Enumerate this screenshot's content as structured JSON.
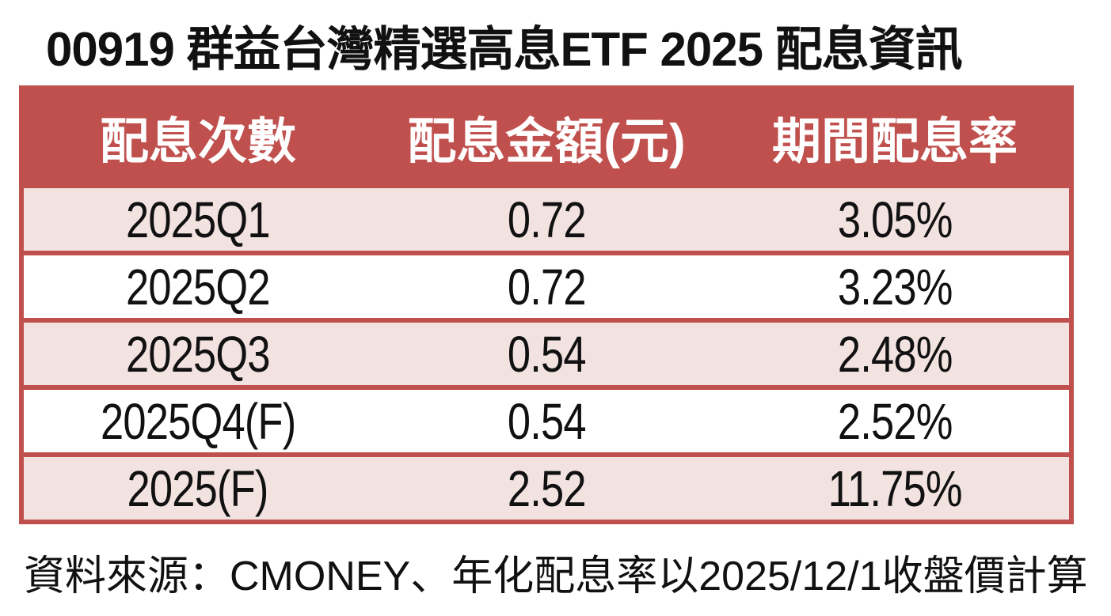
{
  "title": "00919 群益台灣精選高息ETF 2025 配息資訊",
  "table": {
    "headers": [
      "配息次數",
      "配息金額(元)",
      "期間配息率"
    ],
    "rows": [
      {
        "period": "2025Q1",
        "amount": "0.72",
        "rate": "3.05%"
      },
      {
        "period": "2025Q2",
        "amount": "0.72",
        "rate": "3.23%"
      },
      {
        "period": "2025Q3",
        "amount": "0.54",
        "rate": "2.48%"
      },
      {
        "period": "2025Q4(F)",
        "amount": "0.54",
        "rate": "2.52%"
      },
      {
        "period": "2025(F)",
        "amount": "2.52",
        "rate": "11.75%"
      }
    ]
  },
  "footer": "資料來源：CMONEY、年化配息率以2025/12/1收盤價計算",
  "colors": {
    "header_bg": "#C0504D",
    "header_text": "#FFFFFF",
    "row_alt_bg": "#F2E2E0",
    "row_bg": "#FFFFFF",
    "border": "#C0504D",
    "text": "#111111"
  },
  "chart_data": {
    "type": "table",
    "title": "00919 群益台灣精選高息ETF 2025 配息資訊",
    "columns": [
      "配息次數",
      "配息金額(元)",
      "期間配息率"
    ],
    "rows": [
      [
        "2025Q1",
        0.72,
        "3.05%"
      ],
      [
        "2025Q2",
        0.72,
        "3.23%"
      ],
      [
        "2025Q3",
        0.54,
        "2.48%"
      ],
      [
        "2025Q4(F)",
        0.54,
        "2.52%"
      ],
      [
        "2025(F)",
        2.52,
        "11.75%"
      ]
    ],
    "source_note": "資料來源：CMONEY、年化配息率以2025/12/1收盤價計算",
    "style_hints": {
      "header_background": "#C0504D",
      "alternating_row_background": "#F2E2E0",
      "grid": "horizontal red separators only, no vertical dividers"
    }
  }
}
